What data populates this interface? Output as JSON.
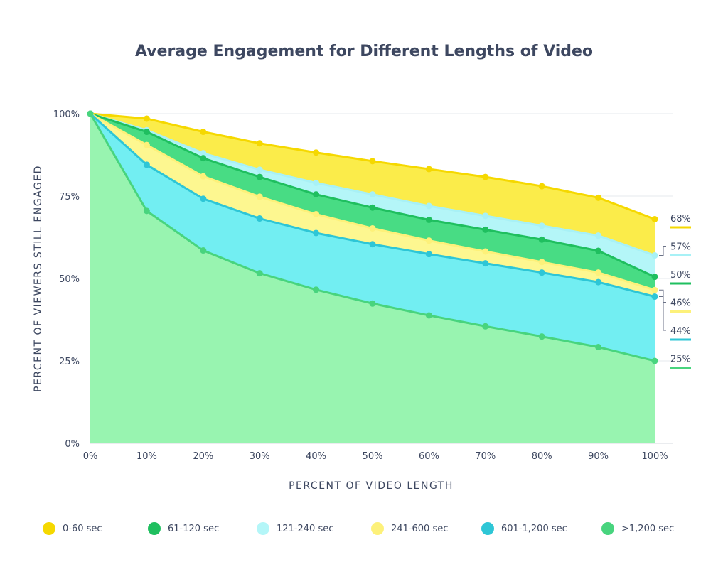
{
  "chart_data": {
    "type": "area",
    "title": "Average Engagement for Different Lengths of Video",
    "xlabel": "PERCENT OF VIDEO LENGTH",
    "ylabel": "PERCENT OF VIEWERS STILL ENGAGED",
    "x": [
      "0%",
      "10%",
      "20%",
      "30%",
      "40%",
      "50%",
      "60%",
      "70%",
      "80%",
      "90%",
      "100%"
    ],
    "x_values": [
      0,
      10,
      20,
      30,
      40,
      50,
      60,
      70,
      80,
      90,
      100
    ],
    "y_ticks": [
      {
        "value": 100,
        "label": "100%"
      },
      {
        "value": 75,
        "label": "75%"
      },
      {
        "value": 50,
        "label": "50%"
      },
      {
        "value": 25,
        "label": "25%"
      },
      {
        "value": 0,
        "label": "0%"
      }
    ],
    "ylim": [
      0,
      100
    ],
    "grid": true,
    "legend_position": "bottom",
    "series": [
      {
        "name": "0-60 sec",
        "fill": "#fbec4a",
        "line": "#f5d800",
        "marker": "#f5d800",
        "values": [
          100,
          98.5,
          94.5,
          91,
          88.2,
          85.6,
          83.2,
          80.8,
          78,
          74.5,
          68
        ],
        "end_label": "68%"
      },
      {
        "name": "61-120 sec",
        "fill": "#48dc84",
        "line": "#1fbf5f",
        "marker": "#1fbf5f",
        "values": [
          100,
          94.5,
          86.5,
          80.8,
          75.5,
          71.5,
          67.8,
          64.8,
          61.8,
          58.4,
          50.5
        ],
        "end_label": "50%"
      },
      {
        "name": "121-240 sec",
        "fill": "#b4f6f8",
        "line": "#a8f1f6",
        "marker": "#a8f1f6",
        "values": [
          100,
          95,
          88,
          83,
          79,
          75.5,
          72,
          69,
          66,
          63,
          57
        ],
        "end_label": "57%"
      },
      {
        "name": "241-600 sec",
        "fill": "#fdf790",
        "line": "#fdf17a",
        "marker": "#fdf17a",
        "values": [
          100,
          90.5,
          81,
          74.8,
          69.5,
          65.2,
          61.5,
          58.2,
          55,
          51.8,
          46.5
        ],
        "end_label": "46%"
      },
      {
        "name": "601-1,200 sec",
        "fill": "#72eef2",
        "line": "#2ec6d6",
        "marker": "#2ec6d6",
        "values": [
          100,
          84.5,
          74.2,
          68.2,
          63.8,
          60.4,
          57.4,
          54.6,
          51.8,
          48.9,
          44.5
        ],
        "end_label": "44%"
      },
      {
        "name": ">1,200 sec",
        "fill": "#98f4b0",
        "line": "#48d47e",
        "marker": "#48d47e",
        "values": [
          100,
          70.5,
          58.5,
          51.6,
          46.6,
          42.4,
          38.8,
          35.5,
          32.4,
          29.2,
          25
        ],
        "end_label": "25%"
      }
    ],
    "draw_order": [
      "0-60 sec",
      "121-240 sec",
      "61-120 sec",
      "241-600 sec",
      "601-1,200 sec",
      ">1,200 sec"
    ]
  },
  "colors": {
    "text": "#3d4760",
    "grid": "#e6e8ed",
    "axis": "#d5d8df",
    "end_label_line": "#6b7287"
  }
}
